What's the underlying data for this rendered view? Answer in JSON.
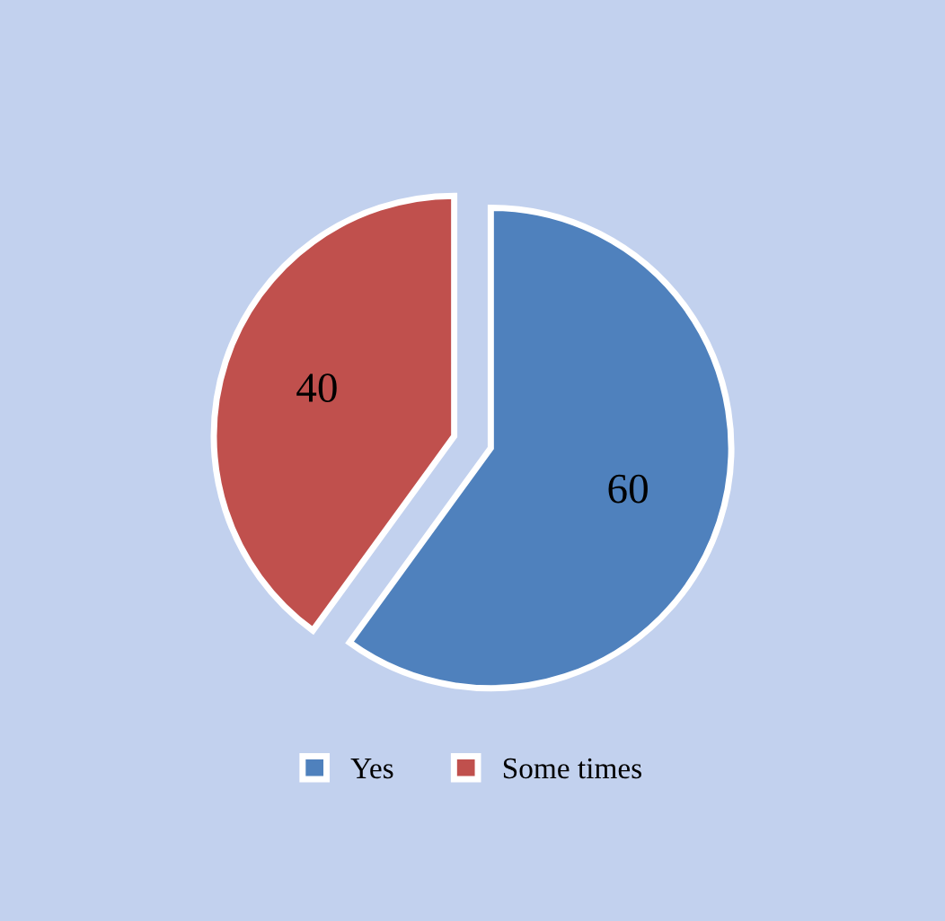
{
  "chart_data": {
    "type": "pie",
    "categories": [
      "Yes",
      "Some times"
    ],
    "values": [
      60,
      40
    ],
    "colors": [
      "#4f81bd",
      "#c0504d"
    ],
    "data_labels": true,
    "legend": "bottom"
  }
}
